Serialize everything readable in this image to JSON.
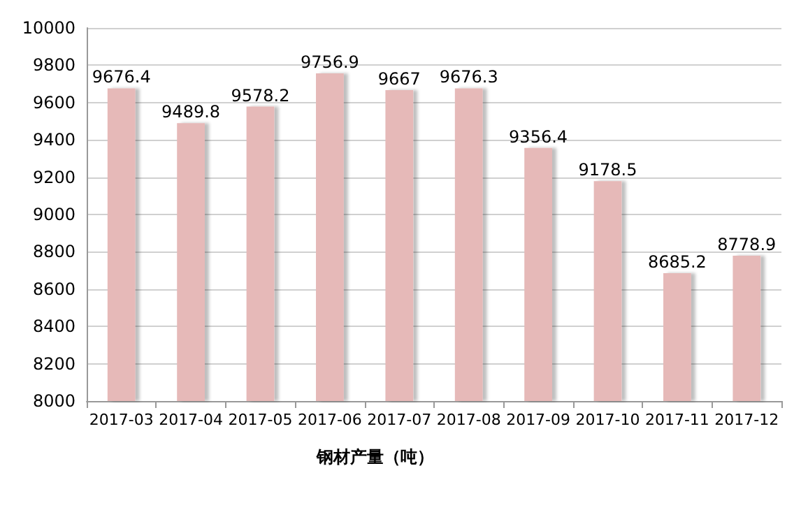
{
  "chart_data": {
    "type": "bar",
    "xlabel": "钢材产量（吨）",
    "categories": [
      "2017-03",
      "2017-04",
      "2017-05",
      "2017-06",
      "2017-07",
      "2017-08",
      "2017-09",
      "2017-10",
      "2017-11",
      "2017-12"
    ],
    "values": [
      9676.4,
      9489.8,
      9578.2,
      9756.9,
      9667,
      9676.3,
      9356.4,
      9178.5,
      8685.2,
      8778.9
    ],
    "color": "#e6b9b8",
    "ylim": [
      8000,
      10000
    ],
    "yticks": [
      8000,
      8200,
      8400,
      8600,
      8800,
      9000,
      9200,
      9400,
      9600,
      9800,
      10000
    ],
    "grid": "y",
    "data_labels": true
  }
}
